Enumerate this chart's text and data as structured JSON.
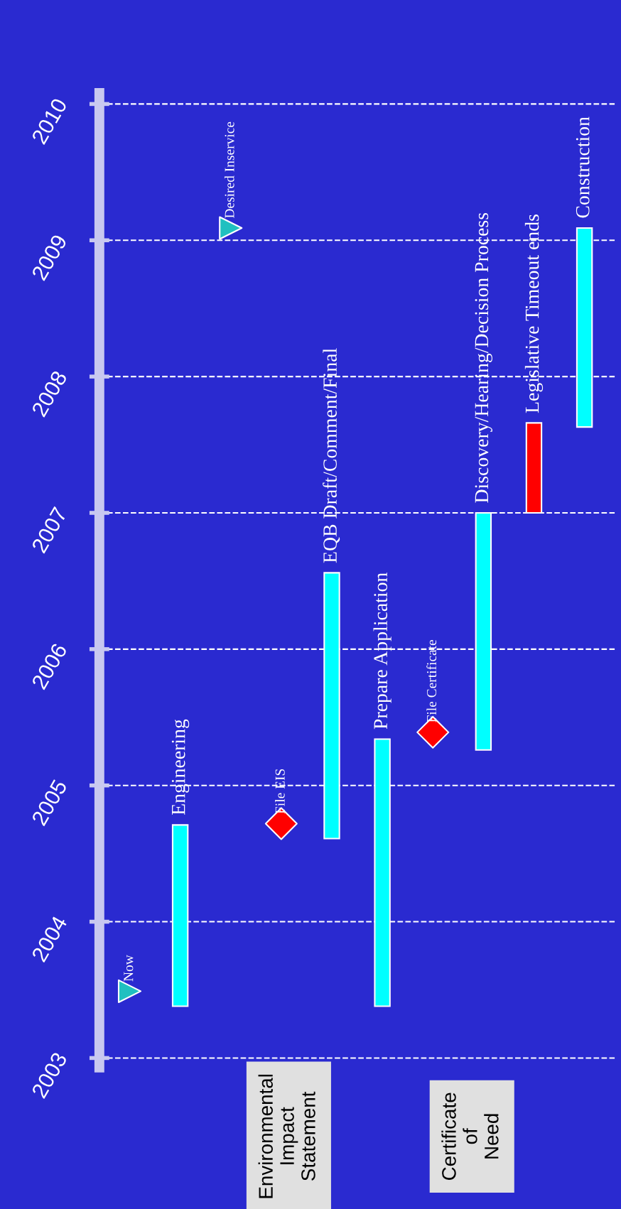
{
  "chart_data": {
    "type": "bar",
    "categories": [
      "Now",
      "Engineering",
      "Desired Inservice",
      "File EIS",
      "EQB Draft/Comment/Final",
      "Prepare Application",
      "File Certificate",
      "Discovery/Hearing/Decision Process",
      "Legislative Timeout ends",
      "Construction"
    ],
    "series": [
      {
        "color": "#00ffff",
        "colors": [
          null,
          null,
          null,
          null,
          null,
          null,
          null,
          null,
          "#ff0000",
          null
        ],
        "base": [
          null,
          2003.38,
          null,
          null,
          2004.61,
          2003.38,
          null,
          2005.26,
          2007.0,
          2007.63
        ],
        "values": [
          null,
          1.33,
          null,
          null,
          1.95,
          1.96,
          null,
          1.74,
          0.66,
          1.46
        ]
      },
      {
        "type": "scatter",
        "marker": "triangle",
        "color": "#20c0c0",
        "values": [
          2003.49,
          null,
          2009.09,
          null,
          null,
          null,
          null,
          null,
          null,
          null
        ]
      },
      {
        "type": "scatter",
        "marker": "diamond",
        "color": "#ff0000",
        "values": [
          null,
          null,
          null,
          2004.72,
          null,
          null,
          2005.39,
          null,
          null,
          null
        ]
      }
    ],
    "ylim": [
      2002.93,
      2010.08
    ],
    "yticks": [
      2003,
      2004,
      2005,
      2006,
      2007,
      2008,
      2009,
      2010
    ],
    "grid": "y",
    "tick_labels": "y",
    "annotations": [
      "Environmental Impact Statement",
      "Certificate of Need"
    ]
  }
}
